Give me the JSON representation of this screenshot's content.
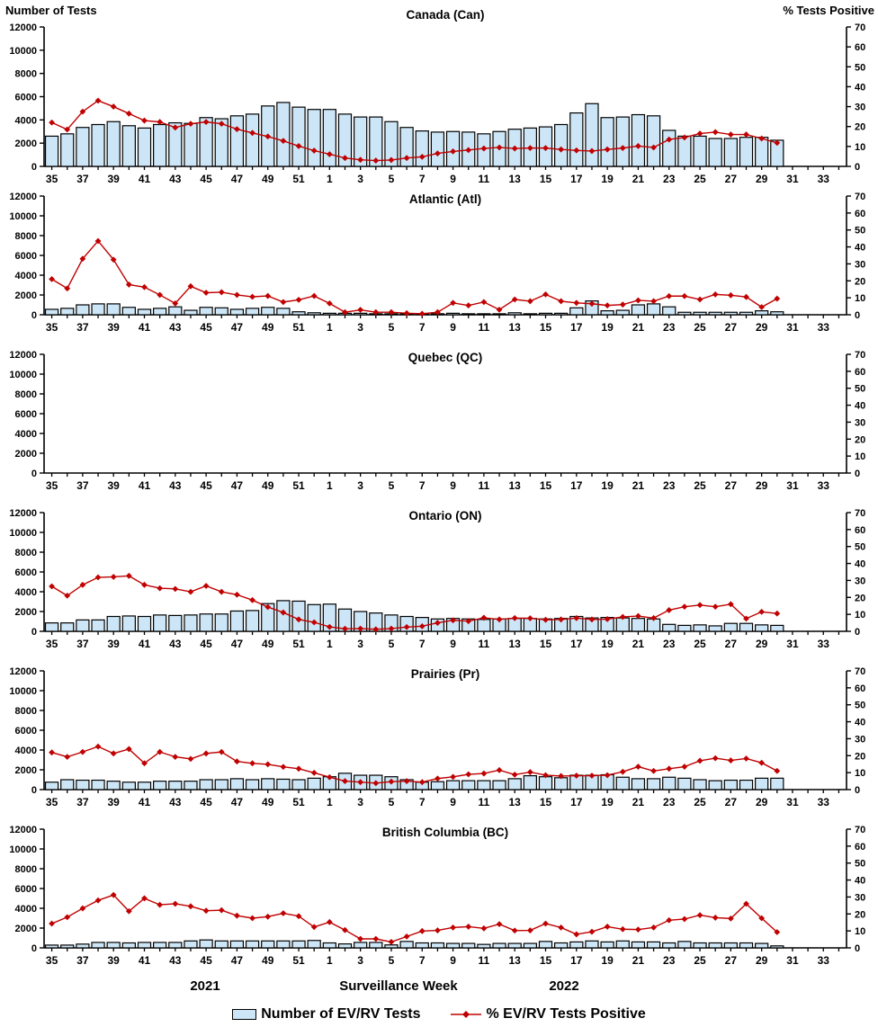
{
  "header": {
    "left_axis_title": "Number of Tests",
    "right_axis_title": "% Tests Positive"
  },
  "footer": {
    "year_left": "2021",
    "x_axis_title": "Surveillance Week",
    "year_right": "2022"
  },
  "legend": {
    "bar_label": "Number of EV/RV Tests",
    "line_label": "% EV/RV Tests Positive"
  },
  "colors": {
    "bar_fill": "#CDE6F7",
    "bar_stroke": "#000000",
    "line": "#C00000",
    "axis": "#000000"
  },
  "chart_data": {
    "type": "bar+line dual-axis, 6 stacked panels",
    "x_tick_labels": [
      "35",
      "37",
      "39",
      "41",
      "43",
      "45",
      "47",
      "49",
      "51",
      "1",
      "3",
      "5",
      "7",
      "9",
      "11",
      "13",
      "15",
      "17",
      "19",
      "21",
      "23",
      "25",
      "27",
      "29",
      "31",
      "33"
    ],
    "weeks": [
      35,
      36,
      37,
      38,
      39,
      40,
      41,
      42,
      43,
      44,
      45,
      46,
      47,
      48,
      49,
      50,
      51,
      52,
      1,
      2,
      3,
      4,
      5,
      6,
      7,
      8,
      9,
      10,
      11,
      12,
      13,
      14,
      15,
      16,
      17,
      18,
      19,
      20,
      21,
      22,
      23,
      24,
      25,
      26,
      27,
      28,
      29,
      30
    ],
    "total_week_slots": 52,
    "left_axis": {
      "title": "Number of Tests",
      "min": 0,
      "max": 12000,
      "step": 2000,
      "tick_labels": [
        "0",
        "2000",
        "4000",
        "6000",
        "8000",
        "10000",
        "12000"
      ]
    },
    "right_axis": {
      "title": "% Tests Positive",
      "min": 0,
      "max": 70,
      "step": 10,
      "tick_labels": [
        "0",
        "10",
        "20",
        "30",
        "40",
        "50",
        "60",
        "70"
      ]
    },
    "bar_series_name": "Number of EV/RV Tests",
    "line_series_name": "% EV/RV Tests Positive",
    "panels": [
      {
        "title": "Canada (Can)",
        "tests": [
          2600,
          2800,
          3350,
          3600,
          3850,
          3500,
          3300,
          3600,
          3750,
          3700,
          4200,
          4100,
          4350,
          4500,
          5200,
          5500,
          5100,
          4900,
          4900,
          4500,
          4250,
          4250,
          3850,
          3350,
          3050,
          2950,
          3000,
          2950,
          2800,
          3000,
          3200,
          3300,
          3400,
          3600,
          4600,
          5400,
          4200,
          4250,
          4450,
          4350,
          3100,
          2600,
          2600,
          2400,
          2400,
          2500,
          2500,
          2250
        ],
        "pct_positive": [
          22,
          18.5,
          27.5,
          33,
          30,
          26.5,
          23,
          22.3,
          19.5,
          21.4,
          22.3,
          21.4,
          18.7,
          16.8,
          15,
          12.8,
          10.2,
          7.9,
          6.1,
          4.2,
          3.3,
          2.9,
          3.2,
          4.2,
          4.8,
          6.5,
          7.5,
          8.2,
          9,
          9.5,
          9,
          9.2,
          9.2,
          8.5,
          8,
          7.7,
          8.5,
          9.2,
          10.2,
          9.5,
          13.5,
          14.5,
          16.5,
          17.2,
          16,
          16,
          14,
          11.8
        ]
      },
      {
        "title": "Atlantic (Atl)",
        "tests": [
          550,
          650,
          1000,
          1100,
          1100,
          750,
          550,
          650,
          800,
          450,
          750,
          700,
          550,
          650,
          750,
          650,
          300,
          200,
          150,
          150,
          150,
          100,
          100,
          100,
          100,
          100,
          150,
          100,
          100,
          100,
          200,
          100,
          150,
          150,
          700,
          1400,
          400,
          450,
          1000,
          1100,
          800,
          250,
          250,
          250,
          250,
          250,
          400,
          300
        ],
        "pct_positive": [
          21,
          15.5,
          33,
          43.5,
          32.5,
          17.8,
          16.3,
          11.7,
          6.7,
          16.8,
          13,
          13.3,
          11.7,
          10.6,
          11.1,
          7.5,
          8.8,
          11.1,
          6.7,
          1.5,
          2.9,
          1.5,
          1.5,
          0.9,
          0.6,
          1.5,
          7,
          5.5,
          7.5,
          3,
          9,
          8,
          12,
          8,
          7,
          6.5,
          5.5,
          6,
          8.5,
          8,
          11,
          11,
          9,
          12,
          11.5,
          10.5,
          4.5,
          9.5
        ]
      },
      {
        "title": "Quebec (QC)",
        "tests": [],
        "pct_positive": []
      },
      {
        "title": "Ontario (ON)",
        "tests": [
          850,
          850,
          1150,
          1150,
          1500,
          1550,
          1500,
          1650,
          1600,
          1650,
          1750,
          1750,
          2050,
          2100,
          2800,
          3100,
          3050,
          2700,
          2750,
          2250,
          2000,
          1850,
          1650,
          1500,
          1400,
          1250,
          1300,
          1250,
          1200,
          1250,
          1300,
          1300,
          1250,
          1300,
          1500,
          1350,
          1400,
          1350,
          1300,
          1250,
          700,
          600,
          650,
          550,
          800,
          800,
          650,
          600
        ],
        "pct_positive": [
          26.5,
          21,
          27.4,
          31.8,
          32.1,
          32.7,
          27.4,
          25.4,
          25,
          23.3,
          26.8,
          23.3,
          21.6,
          18.4,
          14.3,
          11.1,
          7,
          5.3,
          2.6,
          1.5,
          1.6,
          1.2,
          1.6,
          2.5,
          3,
          5,
          6.5,
          6,
          8,
          7,
          7.8,
          7.7,
          6.8,
          7,
          7.8,
          7,
          7.2,
          8.5,
          9,
          7.8,
          12.5,
          14.5,
          15.5,
          14.5,
          16,
          7.5,
          11.5,
          10.5
        ]
      },
      {
        "title": "Prairies (Pr)",
        "tests": [
          750,
          1000,
          950,
          950,
          850,
          750,
          750,
          850,
          850,
          850,
          1000,
          1000,
          1100,
          1000,
          1100,
          1050,
          1000,
          1150,
          1300,
          1650,
          1450,
          1450,
          1300,
          1000,
          750,
          800,
          900,
          900,
          900,
          900,
          1100,
          1400,
          1300,
          1200,
          1450,
          1450,
          1500,
          1250,
          1100,
          1100,
          1250,
          1150,
          1000,
          900,
          950,
          950,
          1150,
          1150
        ],
        "pct_positive": [
          21.9,
          19.3,
          22.2,
          25.4,
          21.3,
          23.9,
          15.5,
          22.2,
          19.3,
          18.1,
          21.3,
          22.2,
          16.6,
          15.5,
          14.9,
          13.4,
          12.3,
          9.9,
          7.3,
          5,
          4.4,
          3.8,
          4.7,
          5,
          4.4,
          6.5,
          7.5,
          9,
          9.5,
          11.5,
          8.8,
          10.3,
          8.5,
          8,
          8.2,
          8.2,
          8.5,
          10.5,
          13.5,
          11,
          12.3,
          13.5,
          17,
          18.5,
          17.2,
          18.3,
          15.8,
          11
        ],
        "note": ""
      },
      {
        "title": "British Columbia (BC)",
        "tests": [
          280,
          280,
          380,
          550,
          550,
          500,
          550,
          550,
          550,
          700,
          800,
          700,
          700,
          700,
          700,
          700,
          700,
          750,
          500,
          400,
          550,
          550,
          300,
          650,
          500,
          500,
          450,
          450,
          350,
          450,
          450,
          450,
          650,
          500,
          600,
          700,
          600,
          700,
          600,
          600,
          500,
          650,
          500,
          500,
          500,
          500,
          450,
          200
        ],
        "pct_positive": [
          14.3,
          18.1,
          23.3,
          28,
          31.2,
          21.6,
          29.2,
          25.4,
          26,
          24.5,
          21.9,
          22.2,
          19,
          17.5,
          18.4,
          20.4,
          18.7,
          12.3,
          15.2,
          10.5,
          5.3,
          5.3,
          3.5,
          6.7,
          9.9,
          10.3,
          12,
          12.5,
          11.5,
          14,
          10.2,
          10.3,
          14.3,
          12,
          8,
          9.5,
          12.5,
          11,
          10.8,
          12,
          16.3,
          17,
          19.3,
          17.8,
          17.3,
          26,
          17.5,
          9.3
        ]
      }
    ]
  }
}
